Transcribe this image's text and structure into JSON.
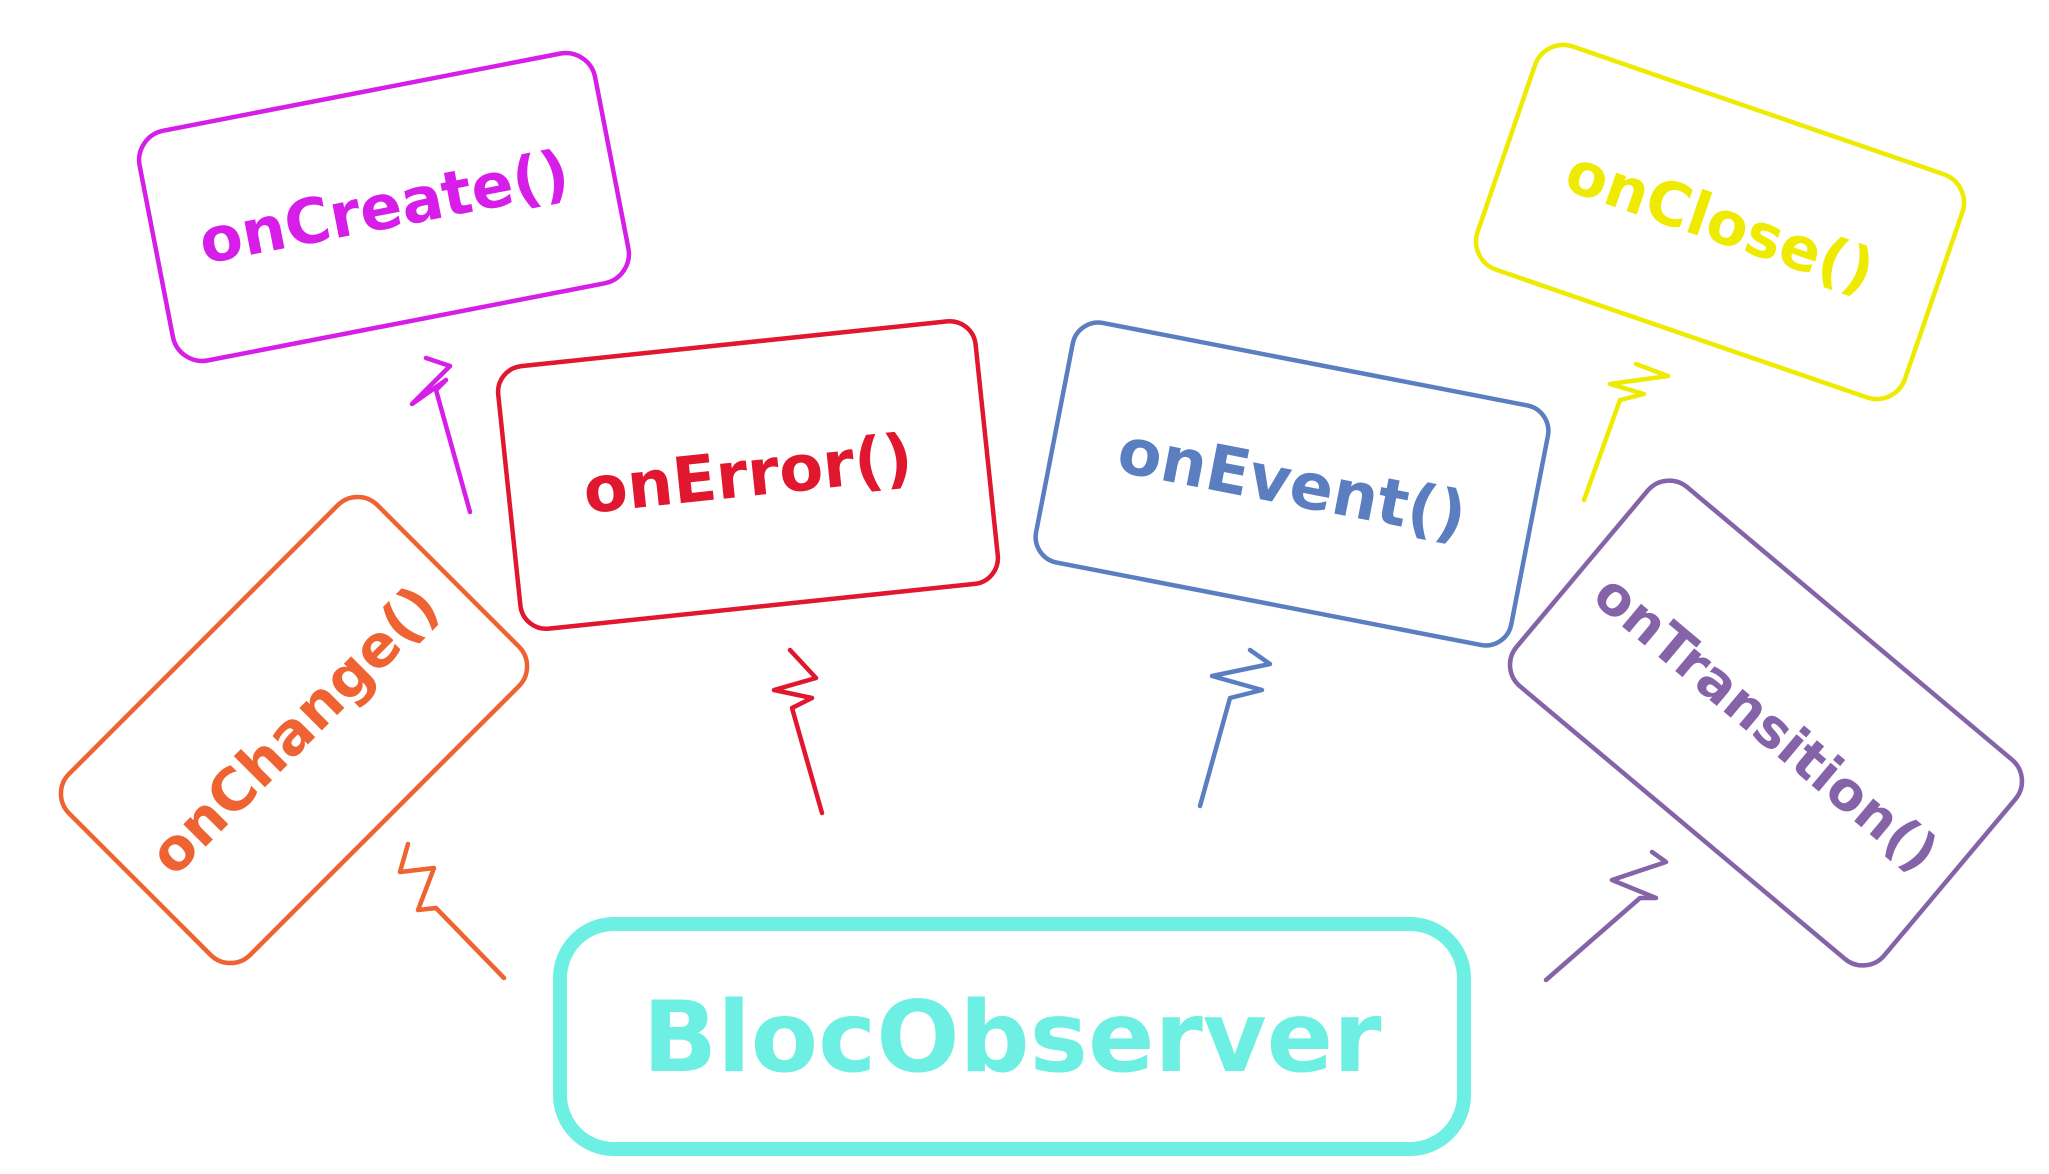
{
  "center": {
    "label": "BlocObserver",
    "color": "#6df0e3"
  },
  "nodes": [
    {
      "id": "on-create",
      "label": "onCreate()",
      "color": "#d61ee8"
    },
    {
      "id": "on-error",
      "label": "onError()",
      "color": "#e0172e"
    },
    {
      "id": "on-event",
      "label": "onEvent()",
      "color": "#5b7ec1"
    },
    {
      "id": "on-close",
      "label": "onClose()",
      "color": "#eeea00"
    },
    {
      "id": "on-change",
      "label": "onChange()",
      "color": "#ee6331"
    },
    {
      "id": "on-transition",
      "label": "onTransition()",
      "color": "#8563a8"
    }
  ]
}
